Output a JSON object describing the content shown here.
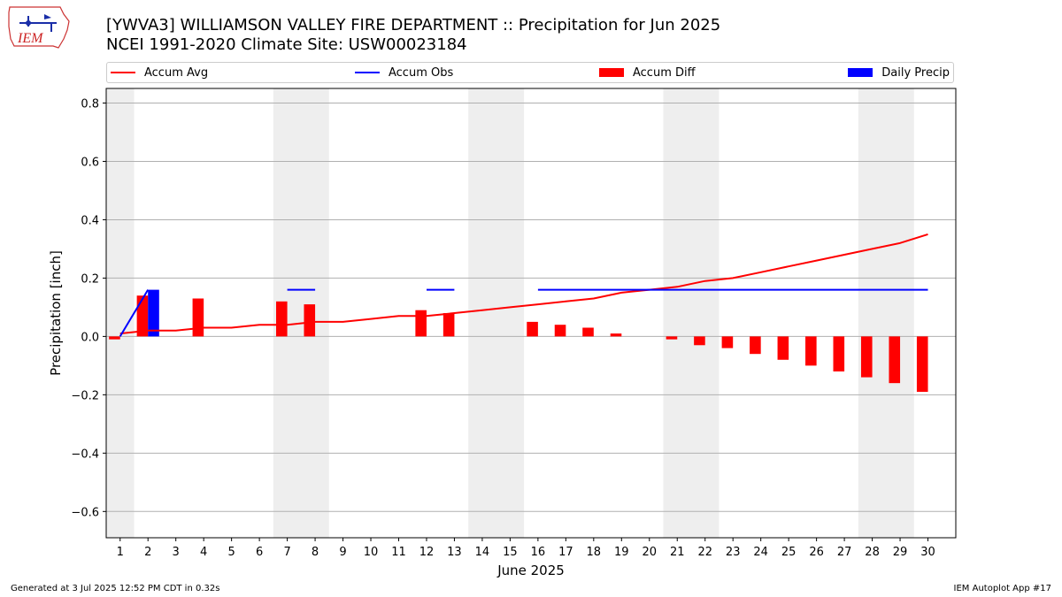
{
  "header": {
    "title_line1": "[YWVA3] WILLIAMSON VALLEY FIRE DEPARTMENT :: Precipitation for Jun 2025",
    "title_line2": "NCEI 1991-2020 Climate Site: USW00023184",
    "logo_text": "IEM"
  },
  "footer": {
    "generated": "Generated at 3 Jul 2025 12:52 PM CDT in 0.32s",
    "app": "IEM Autoplot App #17"
  },
  "colors": {
    "accum_avg": "#ff0000",
    "accum_obs": "#0000ff",
    "accum_diff": "#ff0000",
    "daily_precip": "#0000ff",
    "weekend_shade": "#eeeeee",
    "grid": "#b0b0b0"
  },
  "chart_data": {
    "type": "bar",
    "xlabel": "June 2025",
    "ylabel": "Precipitation [inch]",
    "ylim": [
      -0.69,
      0.85
    ],
    "xlim": [
      0.5,
      31.0
    ],
    "yticks": [
      -0.6,
      -0.4,
      -0.2,
      0.0,
      0.2,
      0.4,
      0.6,
      0.8
    ],
    "ytick_labels": [
      "−0.6",
      "−0.4",
      "−0.2",
      "0.0",
      "0.2",
      "0.4",
      "0.6",
      "0.8"
    ],
    "days": [
      1,
      2,
      3,
      4,
      5,
      6,
      7,
      8,
      9,
      10,
      11,
      12,
      13,
      14,
      15,
      16,
      17,
      18,
      19,
      20,
      21,
      22,
      23,
      24,
      25,
      26,
      27,
      28,
      29,
      30
    ],
    "grid": "horizontal",
    "legend_placement": "top",
    "weekend_shaded_days": [
      [
        1,
        1
      ],
      [
        7,
        8
      ],
      [
        14,
        15
      ],
      [
        21,
        22
      ],
      [
        28,
        29
      ]
    ],
    "series": [
      {
        "name": "Accum Avg",
        "type": "line",
        "values": [
          0.01,
          0.02,
          0.02,
          0.03,
          0.03,
          0.04,
          0.04,
          0.05,
          0.05,
          0.06,
          0.07,
          0.07,
          0.08,
          0.09,
          0.1,
          0.11,
          0.12,
          0.13,
          0.15,
          0.16,
          0.17,
          0.19,
          0.2,
          0.22,
          0.24,
          0.26,
          0.28,
          0.3,
          0.32,
          0.35
        ]
      },
      {
        "name": "Accum Obs",
        "type": "line",
        "values": [
          0.0,
          0.16,
          null,
          null,
          null,
          null,
          0.16,
          0.16,
          null,
          null,
          null,
          0.16,
          0.16,
          null,
          null,
          0.16,
          0.16,
          0.16,
          0.16,
          0.16,
          0.16,
          0.16,
          0.16,
          0.16,
          0.16,
          0.16,
          0.16,
          0.16,
          0.16,
          0.16
        ]
      },
      {
        "name": "Accum Diff",
        "type": "bar",
        "values": [
          -0.01,
          0.14,
          null,
          0.13,
          null,
          null,
          0.12,
          0.11,
          null,
          null,
          null,
          0.09,
          0.08,
          null,
          null,
          0.05,
          0.04,
          0.03,
          0.01,
          null,
          -0.01,
          -0.03,
          -0.04,
          -0.06,
          -0.08,
          -0.1,
          -0.12,
          -0.14,
          -0.16,
          -0.19
        ]
      },
      {
        "name": "Daily Precip",
        "type": "bar",
        "values": [
          0.0,
          0.16,
          0,
          0,
          0,
          0,
          0,
          0,
          0,
          0,
          0,
          0,
          0,
          0,
          0,
          0,
          0,
          0,
          0,
          0,
          0,
          0,
          0,
          0,
          0,
          0,
          0,
          0,
          0,
          0
        ]
      }
    ]
  }
}
